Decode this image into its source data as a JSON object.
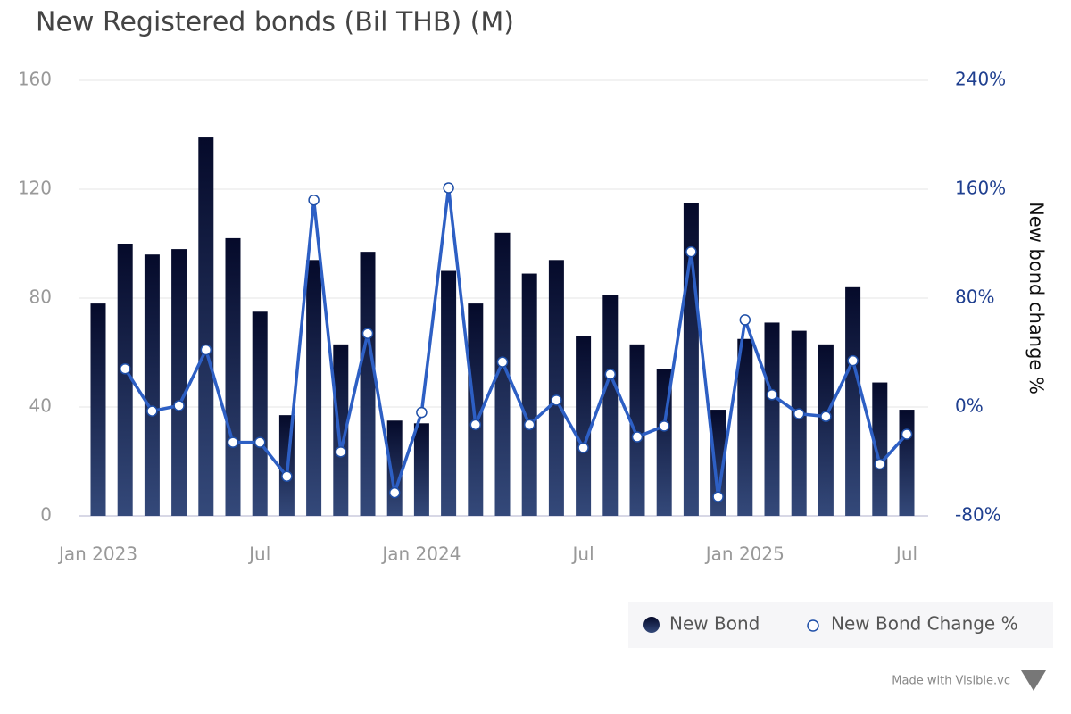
{
  "chart_data": {
    "type": "bar_line",
    "title": "New Registered bonds (Bil THB) (M)",
    "y2label": "New bond change %",
    "credit": "Made with Visible.vc",
    "categories": [
      "Jan 2023",
      null,
      null,
      null,
      null,
      null,
      "Jul",
      null,
      null,
      null,
      null,
      null,
      "Jan 2024",
      null,
      null,
      null,
      null,
      null,
      "Jul",
      null,
      null,
      null,
      null,
      null,
      "Jan 2025",
      null,
      null,
      null,
      null,
      null,
      "Jul"
    ],
    "series": [
      {
        "name": "New Bond",
        "type": "bar",
        "color": "#050a2a",
        "color2": "#34497a",
        "values": [
          78,
          100,
          96,
          98,
          139,
          102,
          75,
          37,
          94,
          63,
          97,
          35,
          34,
          90,
          78,
          104,
          89,
          94,
          66,
          81,
          63,
          54,
          115,
          39,
          65,
          71,
          68,
          63,
          84,
          49,
          39
        ]
      },
      {
        "name": "New Bond Change %",
        "type": "line",
        "axis": "y2",
        "color": "#2d5fc4",
        "values": [
          null,
          28,
          -3,
          1,
          42,
          -26,
          -26,
          -51,
          152,
          -33,
          54,
          -63,
          -4,
          161,
          -13,
          33,
          -13,
          5,
          -30,
          24,
          -22,
          -14,
          114,
          -66,
          64,
          9,
          -5,
          -7,
          34,
          -42,
          -20
        ]
      }
    ],
    "ylim": [
      0,
      160
    ],
    "yticks": [
      0,
      40,
      80,
      120,
      160
    ],
    "y2lim": [
      -80,
      240
    ],
    "y2ticks": [
      {
        "value": -80,
        "label": "-80%"
      },
      {
        "value": 0,
        "label": "0%"
      },
      {
        "value": 80,
        "label": "80%"
      },
      {
        "value": 160,
        "label": "160%"
      },
      {
        "value": 240,
        "label": "240%"
      }
    ],
    "grid": true,
    "legend": "bottom-right"
  }
}
